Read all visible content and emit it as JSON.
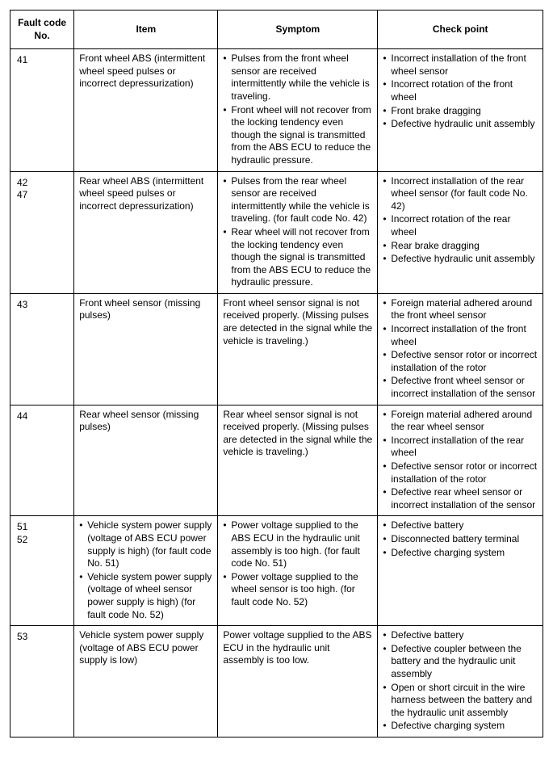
{
  "table": {
    "headers": [
      "Fault code No.",
      "Item",
      "Symptom",
      "Check point"
    ],
    "col_widths_pct": [
      12,
      27,
      30,
      31
    ],
    "border_color": "#000000",
    "background_color": "#ffffff",
    "font_size_pt": 9,
    "header_font_weight": "bold",
    "rows": [
      {
        "code": "41",
        "item": {
          "type": "plain",
          "text": "Front wheel ABS (intermittent wheel speed pulses or incorrect depressurization)"
        },
        "symptom": {
          "type": "list",
          "items": [
            "Pulses from the front wheel sensor are received intermittently while the vehicle is traveling.",
            "Front wheel will not recover from the locking tendency even though the signal is transmitted from the ABS ECU to reduce the hydraulic pressure."
          ]
        },
        "check": {
          "type": "list",
          "items": [
            "Incorrect installation of the front wheel sensor",
            "Incorrect rotation of the front wheel",
            "Front brake dragging",
            "Defective hydraulic unit assembly"
          ]
        }
      },
      {
        "code": "42\n47",
        "item": {
          "type": "plain",
          "text": "Rear wheel ABS (intermittent wheel speed pulses or incorrect depressurization)"
        },
        "symptom": {
          "type": "list",
          "items": [
            "Pulses from the rear wheel sensor are received intermittently while the vehicle is traveling. (for fault code No. 42)",
            "Rear wheel will not recover from the locking tendency even though the signal is transmitted from the ABS ECU to reduce the hydraulic pressure."
          ]
        },
        "check": {
          "type": "list",
          "items": [
            "Incorrect installation of the rear wheel sensor (for fault code No. 42)",
            "Incorrect rotation of the rear wheel",
            "Rear brake dragging",
            "Defective hydraulic unit assembly"
          ]
        }
      },
      {
        "code": "43",
        "item": {
          "type": "plain",
          "text": "Front wheel sensor (missing pulses)"
        },
        "symptom": {
          "type": "plain",
          "text": "Front wheel sensor signal is not received properly. (Missing pulses are detected in the signal while the vehicle is traveling.)"
        },
        "check": {
          "type": "list",
          "items": [
            "Foreign material adhered around the front wheel sensor",
            "Incorrect installation of the front wheel",
            "Defective sensor rotor or incorrect installation of the rotor",
            "Defective front wheel sensor or incorrect installation of the sensor"
          ]
        }
      },
      {
        "code": "44",
        "item": {
          "type": "plain",
          "text": "Rear wheel sensor (missing pulses)"
        },
        "symptom": {
          "type": "plain",
          "text": "Rear wheel sensor signal is not received properly. (Missing pulses are detected in the signal while the vehicle is traveling.)"
        },
        "check": {
          "type": "list",
          "items": [
            "Foreign material adhered around the rear wheel sensor",
            "Incorrect installation of the rear wheel",
            "Defective sensor rotor or incorrect installation of the rotor",
            "Defective rear wheel sensor or incorrect installation of the sensor"
          ]
        }
      },
      {
        "code": "51\n52",
        "item": {
          "type": "list",
          "items": [
            "Vehicle system power supply (voltage of ABS ECU power supply is high) (for fault code No. 51)",
            "Vehicle system power supply (voltage of wheel sensor power supply is high) (for fault code No. 52)"
          ]
        },
        "symptom": {
          "type": "list",
          "items": [
            "Power voltage supplied to the ABS ECU in the hydraulic unit assembly is too high. (for fault code No. 51)",
            "Power voltage supplied to the wheel sensor is too high. (for fault code No. 52)"
          ]
        },
        "check": {
          "type": "list",
          "items": [
            "Defective battery",
            "Disconnected battery terminal",
            "Defective charging system"
          ]
        }
      },
      {
        "code": "53",
        "item": {
          "type": "plain",
          "text": "Vehicle system power supply (voltage of ABS ECU power supply is low)"
        },
        "symptom": {
          "type": "plain",
          "text": "Power voltage supplied to the ABS ECU in the hydraulic unit assembly is too low."
        },
        "check": {
          "type": "list",
          "items": [
            "Defective battery",
            "Defective coupler between the battery and the hydraulic unit assembly",
            "Open or short circuit in the wire harness between the battery and the hydraulic unit assembly",
            "Defective charging system"
          ]
        }
      }
    ]
  }
}
